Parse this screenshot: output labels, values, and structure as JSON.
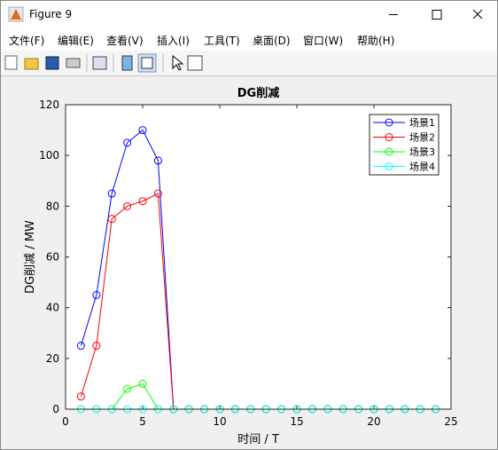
{
  "window": {
    "title": "Figure 9",
    "menus": [
      "文件(F)",
      "编辑(E)",
      "查看(V)",
      "插入(I)",
      "工具(T)",
      "桌面(D)",
      "窗口(W)",
      "帮助(H)"
    ]
  },
  "chart_data": {
    "type": "line",
    "title": "DG削减",
    "xlabel": "时间 / T",
    "ylabel": "DG削减 / MW",
    "x": [
      1,
      2,
      3,
      4,
      5,
      6,
      7,
      8,
      9,
      10,
      11,
      12,
      13,
      14,
      15,
      16,
      17,
      18,
      19,
      20,
      21,
      22,
      23,
      24
    ],
    "series": [
      {
        "name": "场景1",
        "color": "#0000ff",
        "values": [
          25,
          45,
          85,
          105,
          110,
          98,
          0,
          0,
          0,
          0,
          0,
          0,
          0,
          0,
          0,
          0,
          0,
          0,
          0,
          0,
          0,
          0,
          0,
          0
        ]
      },
      {
        "name": "场景2",
        "color": "#ff0000",
        "values": [
          5,
          25,
          75,
          80,
          82,
          85,
          0,
          0,
          0,
          0,
          0,
          0,
          0,
          0,
          0,
          0,
          0,
          0,
          0,
          0,
          0,
          0,
          0,
          0
        ]
      },
      {
        "name": "场景3",
        "color": "#00ff00",
        "values": [
          0,
          0,
          0,
          8,
          10,
          0,
          0,
          0,
          0,
          0,
          0,
          0,
          0,
          0,
          0,
          0,
          0,
          0,
          0,
          0,
          0,
          0,
          0,
          0
        ]
      },
      {
        "name": "场景4",
        "color": "#00ffff",
        "values": [
          0,
          0,
          0,
          0,
          0,
          0,
          0,
          0,
          0,
          0,
          0,
          0,
          0,
          0,
          0,
          0,
          0,
          0,
          0,
          0,
          0,
          0,
          0,
          0
        ]
      }
    ],
    "xlim": [
      0,
      25
    ],
    "xticks": [
      0,
      5,
      10,
      15,
      20,
      25
    ],
    "ylim": [
      0,
      120
    ],
    "yticks": [
      0,
      20,
      40,
      60,
      80,
      100,
      120
    ],
    "legend": "upper right",
    "marker": "circle"
  }
}
